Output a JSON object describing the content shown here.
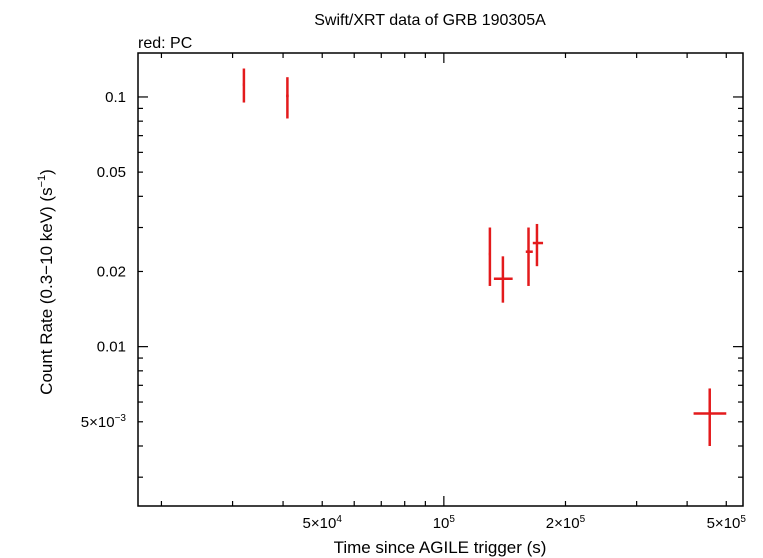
{
  "chart_data": {
    "type": "scatter",
    "title": "Swift/XRT data of GRB 190305A",
    "subtitle": "red: PC",
    "xlabel": "Time since AGILE trigger (s)",
    "ylabel_parts": {
      "prefix": "Count Rate (0.3",
      "dash": "−",
      "mid": "10 keV) (s",
      "exp": "−1",
      "suffix": ")"
    },
    "xscale": "log",
    "yscale": "log",
    "xlim": [
      17500,
      550000
    ],
    "ylim": [
      0.0023,
      0.15
    ],
    "x_ticks": [
      {
        "value": 50000,
        "mant": "5×10",
        "exp": "4"
      },
      {
        "value": 100000,
        "mant": "10",
        "exp": "5"
      },
      {
        "value": 200000,
        "mant": "2×10",
        "exp": "5"
      },
      {
        "value": 500000,
        "mant": "5×10",
        "exp": "5"
      }
    ],
    "y_ticks": [
      {
        "value": 0.1,
        "mant": "0.1",
        "exp": ""
      },
      {
        "value": 0.05,
        "mant": "0.05",
        "exp": ""
      },
      {
        "value": 0.02,
        "mant": "0.02",
        "exp": ""
      },
      {
        "value": 0.01,
        "mant": "0.01",
        "exp": ""
      },
      {
        "value": 0.005,
        "mant": "5×10",
        "exp": "−3"
      }
    ],
    "series": [
      {
        "name": "PC",
        "color": "#e31a1c",
        "points": [
          {
            "x": 32000,
            "xlo": 31800,
            "xhi": 32200,
            "y": 0.112,
            "ylo": 0.095,
            "yhi": 0.13
          },
          {
            "x": 41000,
            "xlo": 40700,
            "xhi": 41300,
            "y": 0.101,
            "ylo": 0.082,
            "yhi": 0.12
          },
          {
            "x": 130000,
            "xlo": 129200,
            "xhi": 130800,
            "y": 0.0235,
            "ylo": 0.0175,
            "yhi": 0.03
          },
          {
            "x": 140000,
            "xlo": 133000,
            "xhi": 148000,
            "y": 0.0187,
            "ylo": 0.015,
            "yhi": 0.023
          },
          {
            "x": 162000,
            "xlo": 159500,
            "xhi": 166000,
            "y": 0.024,
            "ylo": 0.0175,
            "yhi": 0.03
          },
          {
            "x": 170000,
            "xlo": 166000,
            "xhi": 176000,
            "y": 0.026,
            "ylo": 0.021,
            "yhi": 0.031
          },
          {
            "x": 455000,
            "xlo": 415000,
            "xhi": 500000,
            "y": 0.0054,
            "ylo": 0.004,
            "yhi": 0.0068
          }
        ]
      }
    ]
  }
}
